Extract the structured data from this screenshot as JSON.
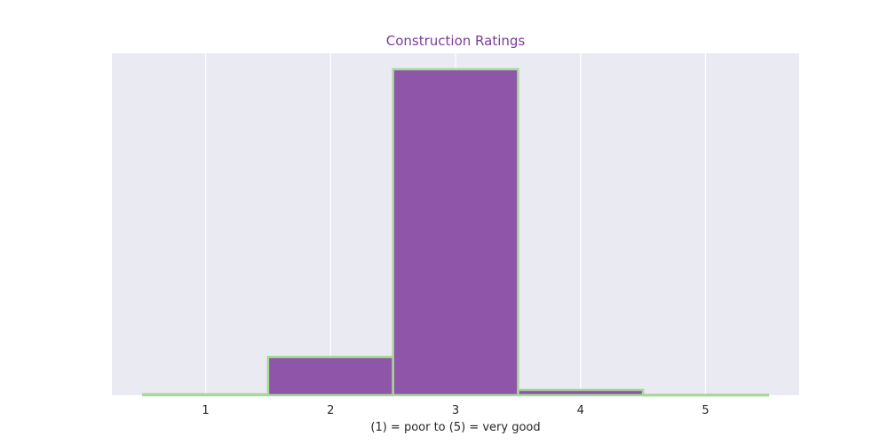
{
  "chart_data": {
    "type": "bar",
    "title": "Construction Ratings",
    "xlabel": "(1) = poor to (5) = very good",
    "ylabel": "",
    "categories": [
      "1",
      "2",
      "3",
      "4",
      "5"
    ],
    "values": [
      1,
      43,
      367,
      6,
      0.4
    ],
    "xlim": [
      0.25,
      5.75
    ],
    "ylim": [
      0,
      385
    ],
    "grid": true,
    "legend": "none",
    "colors": {
      "title": "#7d3c98",
      "bar_fill": "#8e55a9",
      "bar_edge": "#a6d89a",
      "plot_bg": "#eaeaf2",
      "grid": "#ffffff"
    }
  }
}
